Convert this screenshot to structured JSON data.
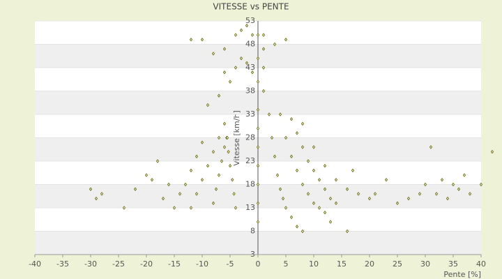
{
  "chart_data": {
    "type": "scatter",
    "title": "VITESSE vs PENTE",
    "x_label": "Pente [%]",
    "y_label": "Vitesse [km/h]",
    "color": "#6b6b10",
    "xlim": [
      -40,
      40
    ],
    "xticks": [
      -40,
      -35,
      -30,
      -25,
      -20,
      -15,
      -10,
      -5,
      0,
      5,
      10,
      15,
      20,
      25,
      30,
      35,
      40
    ],
    "ylim": [
      3,
      53
    ],
    "yticks": [
      3,
      8,
      13,
      18,
      23,
      28,
      33,
      38,
      43,
      48,
      53
    ],
    "x": [
      2,
      2.5,
      3,
      3.5,
      4,
      4.5,
      5,
      6,
      7,
      8,
      4,
      5,
      6,
      7,
      8,
      9,
      10,
      11,
      12,
      6,
      7,
      8,
      9,
      10,
      11,
      12,
      13,
      14,
      8,
      10,
      12,
      14,
      16,
      18,
      20,
      21,
      23,
      25,
      27,
      29,
      30,
      31,
      32,
      33,
      34,
      35,
      36,
      37,
      38,
      40,
      42,
      13,
      16,
      17,
      5,
      3,
      -4,
      -4.3,
      -4.6,
      -5,
      -5.3,
      -5.6,
      -6,
      -8,
      -7.5,
      -7,
      -6.5,
      -6,
      -5.5,
      -12,
      -11,
      -10,
      -9,
      -8,
      -7,
      -15,
      -14,
      -13,
      -12,
      -11,
      -10,
      -30,
      -29,
      -28,
      -24,
      -22,
      -20,
      -19,
      -18,
      -17,
      -16,
      -9,
      -7,
      -5,
      -10,
      -12,
      -8,
      -6,
      -4,
      -3,
      -2,
      -1,
      -3,
      -2,
      -4,
      -1,
      -6,
      0,
      0,
      0,
      0,
      0,
      0,
      0,
      0,
      0,
      0,
      1,
      1,
      1,
      1
    ],
    "y": [
      33,
      28,
      24,
      20,
      17,
      15,
      13,
      11,
      9,
      8,
      33,
      28,
      24,
      21,
      18,
      16,
      14,
      13,
      12,
      32,
      29,
      26,
      23,
      21,
      19,
      17,
      15,
      14,
      31,
      26,
      22,
      19,
      17,
      16,
      15,
      16,
      19,
      14,
      15,
      16,
      18,
      26,
      16,
      19,
      15,
      18,
      17,
      20,
      16,
      18,
      25,
      10,
      8,
      21,
      49,
      48,
      13,
      16,
      19,
      22,
      25,
      28,
      31,
      14,
      17,
      20,
      23,
      26,
      28,
      13,
      16,
      19,
      22,
      25,
      28,
      13,
      16,
      18,
      21,
      24,
      27,
      17,
      15,
      16,
      13,
      17,
      20,
      19,
      23,
      15,
      18,
      35,
      37,
      40,
      49,
      49,
      46,
      47,
      50,
      51,
      52,
      50,
      45,
      44,
      43,
      42,
      42,
      10,
      14,
      18,
      22,
      26,
      30,
      34,
      40,
      45,
      50,
      38,
      43,
      47,
      50
    ]
  }
}
